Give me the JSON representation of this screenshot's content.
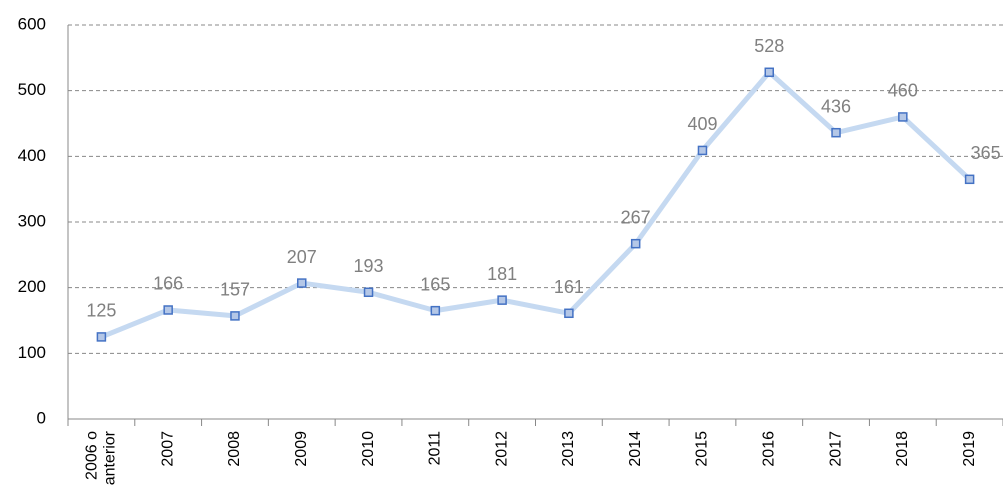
{
  "chart_data": {
    "type": "line",
    "categories": [
      "2006 o anterior",
      "2007",
      "2008",
      "2009",
      "2010",
      "2011",
      "2012",
      "2013",
      "2014",
      "2015",
      "2016",
      "2017",
      "2018",
      "2019"
    ],
    "values": [
      125,
      166,
      157,
      207,
      193,
      165,
      181,
      161,
      267,
      409,
      528,
      436,
      460,
      365
    ],
    "color": "#c5d9f1",
    "marker_color": "#4472c4",
    "ylim": [
      0,
      600
    ],
    "yticks": [
      0,
      100,
      200,
      300,
      400,
      500,
      600
    ],
    "grid": true
  }
}
